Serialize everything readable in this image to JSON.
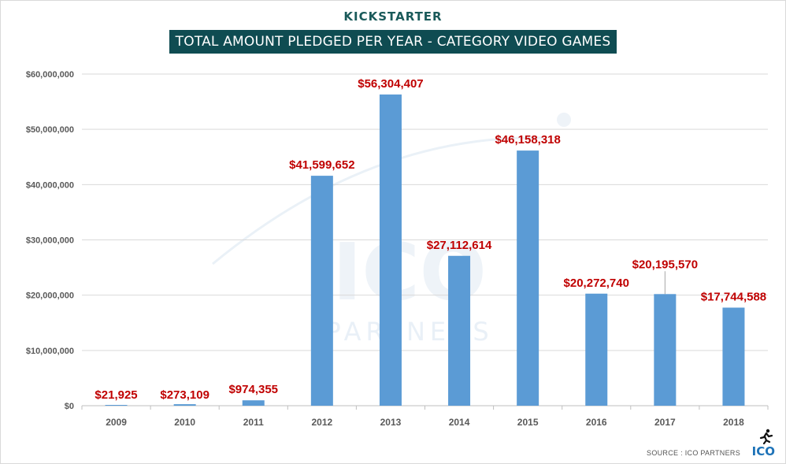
{
  "header": {
    "brand": "KICKSTARTER",
    "title": "TOTAL AMOUNT PLEDGED PER YEAR - CATEGORY VIDEO GAMES"
  },
  "watermark": {
    "main": "ICO",
    "sub": "PARTNERS"
  },
  "footer": {
    "source": "SOURCE : ICO PARTNERS",
    "logo": "ICO"
  },
  "colors": {
    "bar": "#5b9bd5",
    "label": "#c00000",
    "title_bg": "#0f4c52",
    "grid": "#d9d9d9"
  },
  "chart_data": {
    "type": "bar",
    "title": "TOTAL AMOUNT PLEDGED PER YEAR - CATEGORY VIDEO GAMES",
    "categories": [
      "2009",
      "2010",
      "2011",
      "2012",
      "2013",
      "2014",
      "2015",
      "2016",
      "2017",
      "2018"
    ],
    "values": [
      21925,
      273109,
      974355,
      41599652,
      56304407,
      27112614,
      46158318,
      20272740,
      20195570,
      17744588
    ],
    "data_labels": [
      "$21,925",
      "$273,109",
      "$974,355",
      "$41,599,652",
      "$56,304,407",
      "$27,112,614",
      "$46,158,318",
      "$20,272,740",
      "$20,195,570",
      "$17,744,588"
    ],
    "yticks": [
      0,
      10000000,
      20000000,
      30000000,
      40000000,
      50000000,
      60000000
    ],
    "ytick_labels": [
      "$0",
      "$10,000,000",
      "$20,000,000",
      "$30,000,000",
      "$40,000,000",
      "$50,000,000",
      "$60,000,000"
    ],
    "ylim": [
      0,
      60000000
    ],
    "xlabel": "",
    "ylabel": "",
    "grid": true,
    "legend": "none"
  }
}
